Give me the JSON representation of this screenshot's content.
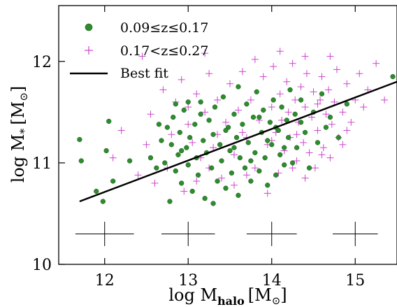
{
  "chart_data": {
    "type": "scatter",
    "xlabel": {
      "main": "log M",
      "sub": "halo",
      "unit_open": "[M",
      "unit_close": "]"
    },
    "ylabel": {
      "main": "log M",
      "sub": "*",
      "unit_open": "[M",
      "unit_close": "]"
    },
    "xlim": [
      11.45,
      15.5
    ],
    "ylim": [
      10.0,
      12.55
    ],
    "xticks": [
      12,
      13,
      14,
      15
    ],
    "yticks": [
      10,
      11,
      12
    ],
    "grid": false,
    "legend": {
      "placement": "top-left",
      "entries": [
        {
          "label": "0.09≤z≤0.17",
          "marker": "circle",
          "color": "#2e8b2e"
        },
        {
          "label": "0.17<z≤0.27",
          "marker": "plus",
          "color": "#cc44cc"
        },
        {
          "label": "Best fit",
          "marker": "line",
          "color": "#000000"
        }
      ]
    },
    "best_fit": {
      "x": [
        11.7,
        15.5
      ],
      "y": [
        10.62,
        11.8
      ]
    },
    "error_bars": [
      {
        "x": 12.0,
        "y": 10.3,
        "xerr": 0.35,
        "yerr": 0.12
      },
      {
        "x": 13.0,
        "y": 10.3,
        "xerr": 0.32,
        "yerr": 0.12
      },
      {
        "x": 14.0,
        "y": 10.3,
        "xerr": 0.3,
        "yerr": 0.12
      },
      {
        "x": 15.0,
        "y": 10.3,
        "xerr": 0.27,
        "yerr": 0.12
      }
    ],
    "series": [
      {
        "name": "0.09≤z≤0.17",
        "marker": "circle",
        "color": "#2e8b2e",
        "points": [
          [
            11.7,
            11.23
          ],
          [
            11.72,
            11.02
          ],
          [
            11.9,
            10.72
          ],
          [
            11.98,
            10.62
          ],
          [
            12.02,
            11.12
          ],
          [
            12.05,
            11.41
          ],
          [
            12.1,
            10.82
          ],
          [
            12.3,
            11.02
          ],
          [
            12.55,
            11.05
          ],
          [
            12.62,
            10.95
          ],
          [
            12.68,
            11.22
          ],
          [
            12.72,
            11.0
          ],
          [
            12.75,
            11.35
          ],
          [
            12.78,
            10.62
          ],
          [
            12.8,
            11.18
          ],
          [
            12.82,
            11.45
          ],
          [
            12.85,
            10.92
          ],
          [
            12.88,
            11.08
          ],
          [
            12.9,
            11.3
          ],
          [
            12.92,
            10.8
          ],
          [
            12.95,
            11.52
          ],
          [
            12.98,
            11.15
          ],
          [
            13.0,
            10.98
          ],
          [
            13.02,
            11.25
          ],
          [
            13.05,
            10.72
          ],
          [
            13.08,
            11.38
          ],
          [
            13.1,
            11.05
          ],
          [
            13.12,
            10.88
          ],
          [
            13.15,
            11.6
          ],
          [
            13.18,
            11.22
          ],
          [
            13.2,
            10.65
          ],
          [
            13.22,
            11.1
          ],
          [
            13.25,
            11.42
          ],
          [
            13.28,
            10.95
          ],
          [
            13.3,
            11.28
          ],
          [
            13.32,
            11.55
          ],
          [
            13.35,
            10.82
          ],
          [
            13.38,
            11.18
          ],
          [
            13.4,
            11.02
          ],
          [
            13.42,
            11.65
          ],
          [
            13.45,
            10.75
          ],
          [
            13.48,
            11.35
          ],
          [
            13.5,
            11.12
          ],
          [
            13.52,
            10.9
          ],
          [
            13.55,
            11.48
          ],
          [
            13.58,
            11.25
          ],
          [
            13.6,
            10.68
          ],
          [
            13.62,
            11.05
          ],
          [
            13.65,
            11.38
          ],
          [
            13.68,
            10.95
          ],
          [
            13.7,
            11.58
          ],
          [
            13.72,
            11.2
          ],
          [
            13.75,
            10.82
          ],
          [
            13.78,
            11.45
          ],
          [
            13.8,
            11.1
          ],
          [
            13.82,
            11.7
          ],
          [
            13.85,
            10.92
          ],
          [
            13.88,
            11.3
          ],
          [
            13.9,
            11.52
          ],
          [
            13.92,
            11.05
          ],
          [
            13.95,
            10.78
          ],
          [
            13.98,
            11.4
          ],
          [
            14.0,
            11.18
          ],
          [
            14.02,
            11.62
          ],
          [
            14.05,
            10.88
          ],
          [
            14.08,
            11.32
          ],
          [
            14.1,
            11.08
          ],
          [
            14.12,
            11.55
          ],
          [
            14.15,
            10.98
          ],
          [
            14.18,
            11.42
          ],
          [
            14.2,
            11.25
          ],
          [
            14.22,
            11.72
          ],
          [
            14.25,
            11.0
          ],
          [
            14.28,
            11.48
          ],
          [
            14.3,
            11.15
          ],
          [
            14.35,
            11.62
          ],
          [
            14.4,
            11.3
          ],
          [
            14.45,
            10.95
          ],
          [
            14.5,
            11.5
          ],
          [
            14.55,
            11.2
          ],
          [
            14.6,
            11.68
          ],
          [
            14.65,
            11.35
          ],
          [
            14.7,
            11.45
          ],
          [
            14.8,
            11.25
          ],
          [
            14.9,
            11.58
          ],
          [
            15.45,
            11.85
          ],
          [
            13.0,
            11.6
          ],
          [
            13.3,
            10.6
          ],
          [
            13.6,
            11.75
          ],
          [
            13.85,
            11.45
          ],
          [
            14.05,
            11.35
          ],
          [
            13.15,
            11.48
          ],
          [
            13.45,
            11.32
          ],
          [
            13.75,
            11.02
          ],
          [
            12.65,
            11.38
          ],
          [
            12.92,
            11.12
          ],
          [
            13.55,
            11.15
          ],
          [
            13.95,
            11.22
          ],
          [
            14.15,
            11.15
          ],
          [
            14.35,
            11.4
          ],
          [
            12.85,
            11.58
          ]
        ]
      },
      {
        "name": "0.17<z≤0.27",
        "marker": "plus",
        "color": "#cc44cc",
        "points": [
          [
            12.45,
            12.05
          ],
          [
            12.7,
            11.72
          ],
          [
            12.85,
            11.6
          ],
          [
            12.92,
            11.82
          ],
          [
            13.0,
            11.55
          ],
          [
            13.05,
            11.2
          ],
          [
            13.1,
            11.68
          ],
          [
            13.15,
            11.05
          ],
          [
            13.2,
            11.5
          ],
          [
            13.25,
            11.88
          ],
          [
            13.3,
            11.15
          ],
          [
            13.35,
            11.62
          ],
          [
            13.4,
            10.85
          ],
          [
            13.45,
            11.4
          ],
          [
            13.5,
            11.78
          ],
          [
            13.55,
            11.08
          ],
          [
            13.6,
            11.52
          ],
          [
            13.65,
            11.9
          ],
          [
            13.7,
            11.25
          ],
          [
            13.75,
            11.62
          ],
          [
            13.8,
            10.95
          ],
          [
            13.85,
            11.42
          ],
          [
            13.9,
            11.85
          ],
          [
            13.95,
            11.18
          ],
          [
            14.0,
            11.55
          ],
          [
            14.02,
            11.95
          ],
          [
            14.05,
            11.3
          ],
          [
            14.08,
            10.9
          ],
          [
            14.1,
            11.68
          ],
          [
            14.12,
            11.42
          ],
          [
            14.15,
            11.12
          ],
          [
            14.18,
            11.8
          ],
          [
            14.2,
            11.5
          ],
          [
            14.22,
            11.25
          ],
          [
            14.25,
            11.98
          ],
          [
            14.28,
            11.62
          ],
          [
            14.3,
            11.02
          ],
          [
            14.32,
            11.4
          ],
          [
            14.35,
            11.75
          ],
          [
            14.38,
            11.2
          ],
          [
            14.4,
            11.55
          ],
          [
            14.42,
            11.88
          ],
          [
            14.45,
            11.1
          ],
          [
            14.48,
            11.45
          ],
          [
            14.5,
            11.7
          ],
          [
            14.52,
            10.95
          ],
          [
            14.55,
            11.32
          ],
          [
            14.58,
            11.62
          ],
          [
            14.6,
            11.85
          ],
          [
            14.62,
            11.15
          ],
          [
            14.65,
            11.48
          ],
          [
            14.68,
            11.72
          ],
          [
            14.7,
            11.05
          ],
          [
            14.72,
            11.38
          ],
          [
            14.75,
            11.6
          ],
          [
            14.78,
            11.92
          ],
          [
            14.8,
            11.25
          ],
          [
            14.85,
            11.5
          ],
          [
            14.9,
            11.78
          ],
          [
            14.95,
            11.4
          ],
          [
            15.0,
            11.62
          ],
          [
            15.05,
            11.88
          ],
          [
            15.1,
            11.55
          ],
          [
            15.15,
            11.72
          ],
          [
            15.25,
            11.98
          ],
          [
            15.35,
            11.62
          ],
          [
            14.4,
            12.05
          ],
          [
            14.1,
            12.1
          ],
          [
            13.8,
            12.02
          ],
          [
            13.2,
            12.08
          ],
          [
            14.7,
            12.05
          ],
          [
            14.25,
            10.95
          ],
          [
            13.95,
            10.7
          ],
          [
            14.4,
            10.85
          ],
          [
            12.1,
            11.05
          ],
          [
            12.2,
            11.32
          ],
          [
            12.4,
            10.88
          ],
          [
            12.5,
            11.18
          ],
          [
            12.55,
            11.48
          ],
          [
            12.6,
            10.8
          ],
          [
            12.75,
            10.95
          ],
          [
            12.95,
            10.72
          ],
          [
            13.1,
            10.82
          ],
          [
            13.25,
            10.95
          ],
          [
            13.55,
            10.78
          ],
          [
            13.7,
            10.88
          ],
          [
            14.6,
            11.08
          ],
          [
            14.85,
            11.18
          ],
          [
            12.8,
            11.28
          ],
          [
            13.0,
            11.38
          ],
          [
            13.35,
            11.28
          ],
          [
            13.65,
            11.3
          ],
          [
            14.0,
            11.22
          ],
          [
            14.3,
            11.28
          ],
          [
            14.55,
            11.58
          ],
          [
            14.9,
            11.32
          ]
        ]
      }
    ]
  }
}
